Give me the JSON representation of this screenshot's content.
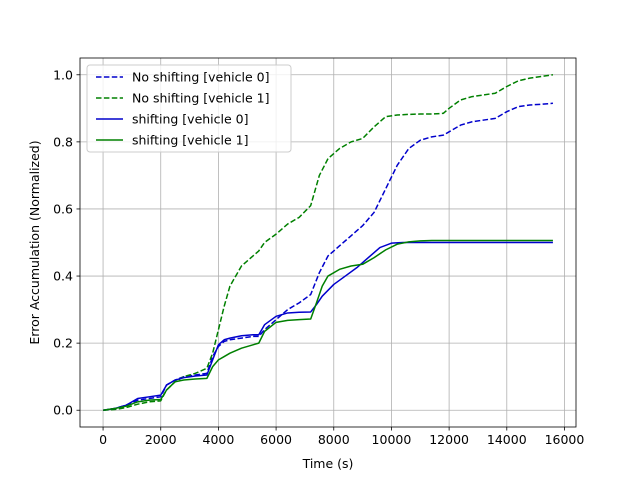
{
  "chart_data": {
    "type": "line",
    "title": "",
    "xlabel": "Time (s)",
    "ylabel": "Error Accumulation (Normalized)",
    "xlim": [
      -800,
      16400
    ],
    "ylim": [
      -0.05,
      1.05
    ],
    "xticks": [
      0,
      2000,
      4000,
      6000,
      8000,
      10000,
      12000,
      14000,
      16000
    ],
    "xtick_labels": [
      "0",
      "2000",
      "4000",
      "6000",
      "8000",
      "10000",
      "12000",
      "14000",
      "16000"
    ],
    "yticks": [
      0.0,
      0.2,
      0.4,
      0.6,
      0.8,
      1.0
    ],
    "ytick_labels": [
      "0.0",
      "0.2",
      "0.4",
      "0.6",
      "0.8",
      "1.0"
    ],
    "grid": true,
    "legend_position": "top-left",
    "series": [
      {
        "name": "No shifting [vehicle 0]",
        "color": "#0000cc",
        "style": "dashed",
        "x": [
          0,
          400,
          800,
          1200,
          1600,
          2000,
          2200,
          2500,
          2800,
          3200,
          3600,
          3800,
          4000,
          4200,
          4400,
          4800,
          5200,
          5400,
          5600,
          6000,
          6400,
          6800,
          7200,
          7500,
          7800,
          8200,
          8600,
          9000,
          9400,
          9800,
          10200,
          10600,
          11000,
          11400,
          11800,
          12000,
          12400,
          12800,
          13200,
          13600,
          14000,
          14400,
          14800,
          15200,
          15600
        ],
        "y": [
          0.0,
          0.005,
          0.015,
          0.03,
          0.035,
          0.04,
          0.075,
          0.09,
          0.1,
          0.105,
          0.11,
          0.16,
          0.19,
          0.205,
          0.21,
          0.215,
          0.22,
          0.22,
          0.24,
          0.27,
          0.3,
          0.32,
          0.345,
          0.41,
          0.46,
          0.49,
          0.52,
          0.55,
          0.59,
          0.66,
          0.73,
          0.78,
          0.805,
          0.815,
          0.82,
          0.83,
          0.85,
          0.86,
          0.865,
          0.87,
          0.89,
          0.905,
          0.91,
          0.912,
          0.915
        ]
      },
      {
        "name": "No shifting [vehicle 1]",
        "color": "#008000",
        "style": "dashed",
        "x": [
          0,
          400,
          800,
          1200,
          1600,
          2000,
          2200,
          2500,
          2800,
          3200,
          3600,
          3800,
          4000,
          4200,
          4400,
          4800,
          5200,
          5400,
          5600,
          6000,
          6400,
          6800,
          7200,
          7500,
          7800,
          8200,
          8600,
          9000,
          9400,
          9800,
          10200,
          10600,
          11000,
          11400,
          11800,
          12000,
          12400,
          12800,
          13200,
          13600,
          14000,
          14400,
          14800,
          15200,
          15600
        ],
        "y": [
          0.0,
          0.002,
          0.008,
          0.018,
          0.025,
          0.028,
          0.06,
          0.085,
          0.1,
          0.11,
          0.125,
          0.17,
          0.24,
          0.31,
          0.37,
          0.43,
          0.46,
          0.475,
          0.5,
          0.525,
          0.555,
          0.575,
          0.61,
          0.7,
          0.75,
          0.78,
          0.8,
          0.81,
          0.845,
          0.875,
          0.88,
          0.882,
          0.883,
          0.883,
          0.885,
          0.9,
          0.925,
          0.935,
          0.94,
          0.945,
          0.965,
          0.982,
          0.99,
          0.995,
          1.0
        ]
      },
      {
        "name": "shifting [vehicle 0]",
        "color": "#0000cc",
        "style": "solid",
        "x": [
          0,
          400,
          800,
          1200,
          1600,
          2000,
          2200,
          2500,
          2800,
          3200,
          3600,
          3800,
          4000,
          4200,
          4400,
          4800,
          5200,
          5400,
          5600,
          6000,
          6400,
          6800,
          7200,
          7400,
          7600,
          8000,
          8400,
          8800,
          9200,
          9600,
          10000,
          10400,
          10800,
          11200,
          11600,
          12000,
          12800,
          13600,
          14400,
          15200,
          15600
        ],
        "y": [
          0.0,
          0.005,
          0.015,
          0.035,
          0.04,
          0.045,
          0.075,
          0.09,
          0.097,
          0.102,
          0.105,
          0.15,
          0.195,
          0.21,
          0.215,
          0.222,
          0.225,
          0.225,
          0.255,
          0.28,
          0.29,
          0.292,
          0.293,
          0.315,
          0.34,
          0.375,
          0.4,
          0.425,
          0.455,
          0.485,
          0.498,
          0.5,
          0.5,
          0.5,
          0.5,
          0.5,
          0.5,
          0.5,
          0.5,
          0.5,
          0.5
        ]
      },
      {
        "name": "shifting [vehicle 1]",
        "color": "#008000",
        "style": "solid",
        "x": [
          0,
          400,
          800,
          1200,
          1600,
          2000,
          2200,
          2500,
          2800,
          3200,
          3600,
          3800,
          4000,
          4200,
          4400,
          4800,
          5200,
          5400,
          5600,
          6000,
          6400,
          6800,
          7200,
          7400,
          7600,
          7800,
          8200,
          8600,
          9000,
          9400,
          9800,
          10200,
          10600,
          11000,
          11400,
          12000,
          12800,
          13600,
          14400,
          15200,
          15600
        ],
        "y": [
          0.0,
          0.005,
          0.012,
          0.025,
          0.03,
          0.032,
          0.06,
          0.085,
          0.09,
          0.093,
          0.095,
          0.13,
          0.15,
          0.16,
          0.17,
          0.185,
          0.195,
          0.2,
          0.235,
          0.262,
          0.268,
          0.27,
          0.272,
          0.32,
          0.37,
          0.4,
          0.42,
          0.43,
          0.435,
          0.455,
          0.478,
          0.495,
          0.502,
          0.505,
          0.506,
          0.506,
          0.506,
          0.506,
          0.506,
          0.506,
          0.506
        ]
      }
    ]
  }
}
